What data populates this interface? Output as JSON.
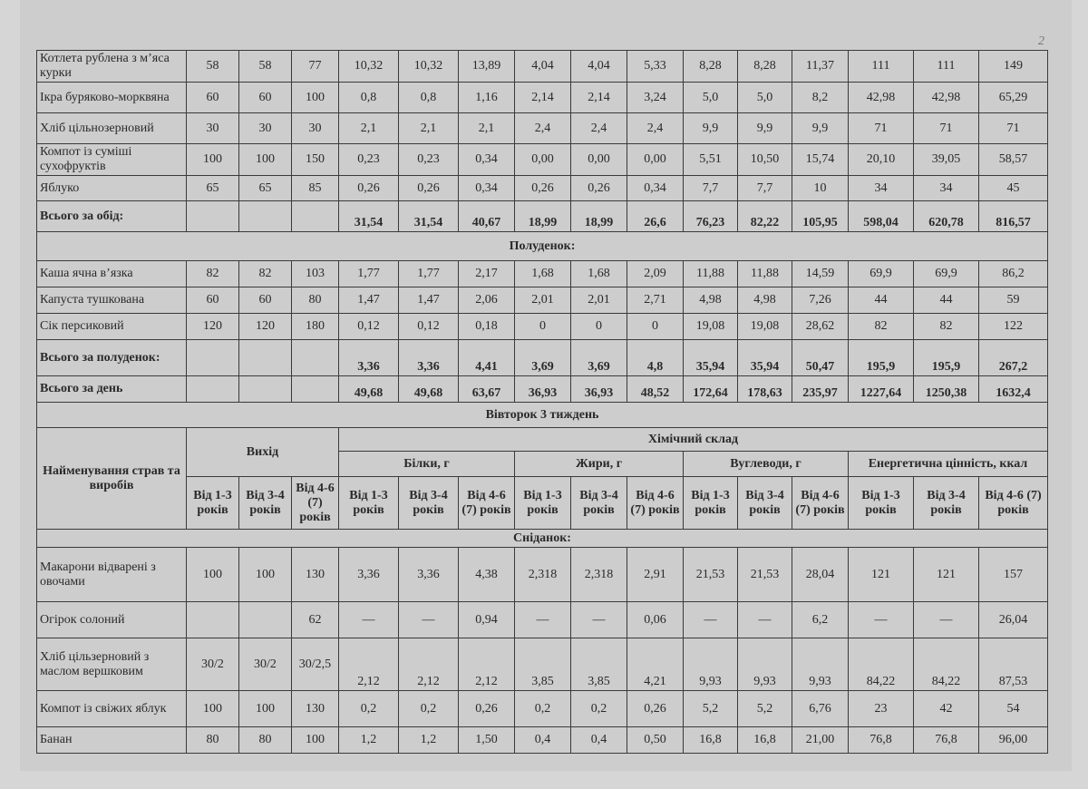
{
  "page_mark": "2",
  "lunch_rows": [
    [
      "Котлета рублена з м’яса курки",
      "58",
      "58",
      "77",
      "10,32",
      "10,32",
      "13,89",
      "4,04",
      "4,04",
      "5,33",
      "8,28",
      "8,28",
      "11,37",
      "111",
      "111",
      "149"
    ],
    [
      "Ікра буряково-морквяна",
      "60",
      "60",
      "100",
      "0,8",
      "0,8",
      "1,16",
      "2,14",
      "2,14",
      "3,24",
      "5,0",
      "5,0",
      "8,2",
      "42,98",
      "42,98",
      "65,29"
    ],
    [
      "Хліб цільнозерновий",
      "30",
      "30",
      "30",
      "2,1",
      "2,1",
      "2,1",
      "2,4",
      "2,4",
      "2,4",
      "9,9",
      "9,9",
      "9,9",
      "71",
      "71",
      "71"
    ],
    [
      "Компот із суміші сухофруктів",
      "100",
      "100",
      "150",
      "0,23",
      "0,23",
      "0,34",
      "0,00",
      "0,00",
      "0,00",
      "5,51",
      "10,50",
      "15,74",
      "20,10",
      "39,05",
      "58,57"
    ],
    [
      "Яблуко",
      "65",
      "65",
      "85",
      "0,26",
      "0,26",
      "0,34",
      "0,26",
      "0,26",
      "0,34",
      "7,7",
      "7,7",
      "10",
      "34",
      "34",
      "45"
    ]
  ],
  "lunch_total": [
    "Всього за обід:",
    "",
    "",
    "",
    "31,54",
    "31,54",
    "40,67",
    "18,99",
    "18,99",
    "26,6",
    "76,23",
    "82,22",
    "105,95",
    "598,04",
    "620,78",
    "816,57"
  ],
  "snack_title": "Полуденок:",
  "snack_rows": [
    [
      "Каша ячна в’язка",
      "82",
      "82",
      "103",
      "1,77",
      "1,77",
      "2,17",
      "1,68",
      "1,68",
      "2,09",
      "11,88",
      "11,88",
      "14,59",
      "69,9",
      "69,9",
      "86,2"
    ],
    [
      "Капуста тушкована",
      "60",
      "60",
      "80",
      "1,47",
      "1,47",
      "2,06",
      "2,01",
      "2,01",
      "2,71",
      "4,98",
      "4,98",
      "7,26",
      "44",
      "44",
      "59"
    ],
    [
      "Сік персиковий",
      "120",
      "120",
      "180",
      "0,12",
      "0,12",
      "0,18",
      "0",
      "0",
      "0",
      "19,08",
      "19,08",
      "28,62",
      "82",
      "82",
      "122"
    ]
  ],
  "snack_total": [
    "Всього за полуденок:",
    "",
    "",
    "",
    "3,36",
    "3,36",
    "4,41",
    "3,69",
    "3,69",
    "4,8",
    "35,94",
    "35,94",
    "50,47",
    "195,9",
    "195,9",
    "267,2"
  ],
  "day_total": [
    "Всього за день",
    "",
    "",
    "",
    "49,68",
    "49,68",
    "63,67",
    "36,93",
    "36,93",
    "48,52",
    "172,64",
    "178,63",
    "235,97",
    "1227,64",
    "1250,38",
    "1632,4"
  ],
  "day_title": "Вівторок 3 тиждень",
  "header": {
    "name": "Найменування страв та виробів",
    "output": "Вихід",
    "chem": "Хімічний склад",
    "groups": [
      "Білки, г",
      "Жири, г",
      "Вуглеводи, г",
      "Енергетична цінність, ккал"
    ],
    "output_ages": [
      "Від 1-3 років",
      "Від 3-4 років",
      "Від 4-6 (7) років"
    ],
    "ages": [
      "Від 1-3 років",
      "Від 3-4 років",
      "Від 4-6 (7) років",
      "Від 1-3 років",
      "Від 3-4 років",
      "Від 4-6 (7) років",
      "Від 1-3 років",
      "Від 3-4 років",
      "Від 4-6 (7) років",
      "Від 1-3 років",
      "Від 3-4 років",
      "Від 4-6 (7) років"
    ]
  },
  "breakfast_title": "Сніданок:",
  "breakfast_rows": [
    [
      "Макарони відварені з овочами",
      "100",
      "100",
      "130",
      "3,36",
      "3,36",
      "4,38",
      "2,318",
      "2,318",
      "2,91",
      "21,53",
      "21,53",
      "28,04",
      "121",
      "121",
      "157"
    ],
    [
      "Огірок солоний",
      "",
      "",
      "62",
      "—",
      "—",
      "0,94",
      "—",
      "—",
      "0,06",
      "—",
      "—",
      "6,2",
      "—",
      "—",
      "26,04"
    ],
    [
      "Хліб цільзерновий з маслом вершковим",
      "30/2",
      "30/2",
      "30/2,5",
      "2,12",
      "2,12",
      "2,12",
      "3,85",
      "3,85",
      "4,21",
      "9,93",
      "9,93",
      "9,93",
      "84,22",
      "84,22",
      "87,53"
    ],
    [
      "Компот із свіжих яблук",
      "100",
      "100",
      "130",
      "0,2",
      "0,2",
      "0,26",
      "0,2",
      "0,2",
      "0,26",
      "5,2",
      "5,2",
      "6,76",
      "23",
      "42",
      "54"
    ],
    [
      "Банан",
      "80",
      "80",
      "100",
      "1,2",
      "1,2",
      "1,50",
      "0,4",
      "0,4",
      "0,50",
      "16,8",
      "16,8",
      "21,00",
      "76,8",
      "76,8",
      "96,00"
    ]
  ]
}
